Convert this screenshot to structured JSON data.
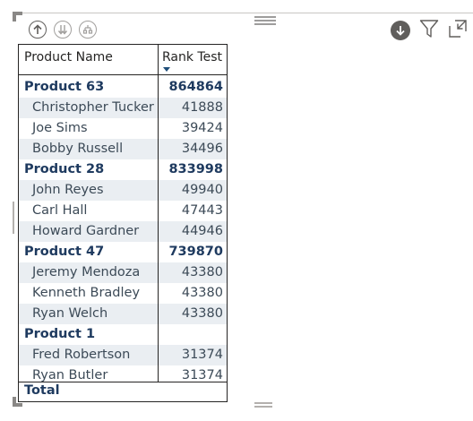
{
  "toolbar": {
    "drill_up": "arrow-up-circle-icon",
    "drill_down_all": "double-arrow-down-circle-icon",
    "expand_all": "hierarchy-expand-icon",
    "drill_mode": "arrow-down-circle-icon",
    "filter": "filter-icon",
    "focus_mode": "focus-mode-icon"
  },
  "table": {
    "headers": {
      "name": "Product Name",
      "rank": "Rank Test"
    },
    "rows": [
      {
        "type": "parent",
        "name": "Product 63",
        "value": "864864"
      },
      {
        "type": "child",
        "name": "Christopher Tucker",
        "value": "41888"
      },
      {
        "type": "child",
        "name": "Joe Sims",
        "value": "39424"
      },
      {
        "type": "child",
        "name": "Bobby Russell",
        "value": "34496"
      },
      {
        "type": "parent",
        "name": "Product 28",
        "value": "833998"
      },
      {
        "type": "child",
        "name": "John Reyes",
        "value": "49940"
      },
      {
        "type": "child",
        "name": "Carl Hall",
        "value": "47443"
      },
      {
        "type": "child",
        "name": "Howard Gardner",
        "value": "44946"
      },
      {
        "type": "parent",
        "name": "Product 47",
        "value": "739870"
      },
      {
        "type": "child",
        "name": "Jeremy Mendoza",
        "value": "43380"
      },
      {
        "type": "child",
        "name": "Kenneth Bradley",
        "value": "43380"
      },
      {
        "type": "child",
        "name": "Ryan Welch",
        "value": "43380"
      },
      {
        "type": "parent",
        "name": "Product 1",
        "value": ""
      },
      {
        "type": "child",
        "name": "Fred Robertson",
        "value": "31374"
      },
      {
        "type": "child",
        "name": "Ryan Butler",
        "value": "31374"
      }
    ],
    "total_label": "Total"
  },
  "colors": {
    "accent_text": "#1e3a5f",
    "row_band": "#eaeef2",
    "sort_arrow": "#1f4e79"
  }
}
